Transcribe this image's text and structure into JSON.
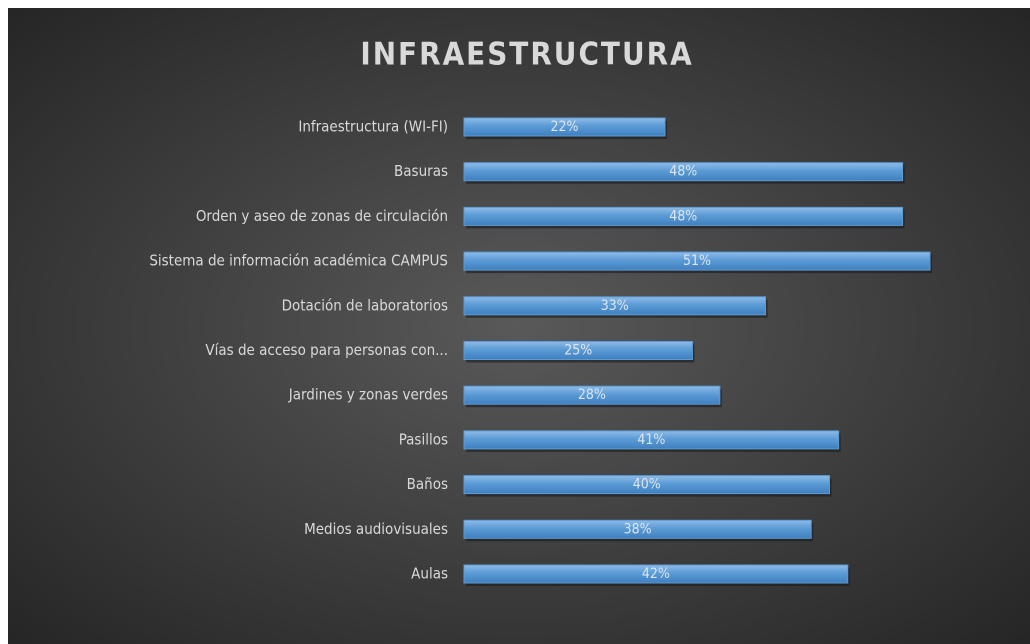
{
  "chart_data": {
    "type": "bar",
    "orientation": "horizontal",
    "title": "INFRAESTRUCTURA",
    "categories": [
      "Infraestructura (WI-FI)",
      "Basuras",
      "Orden y aseo de zonas de circulación",
      "Sistema de información académica CAMPUS",
      "Dotación de laboratorios",
      "Vías de acceso para personas con...",
      "Jardines y zonas verdes",
      "Pasillos",
      "Baños",
      "Medios audiovisuales",
      "Aulas"
    ],
    "values": [
      22,
      48,
      48,
      51,
      33,
      25,
      28,
      41,
      40,
      38,
      42
    ],
    "value_labels": [
      "22%",
      "48%",
      "48%",
      "51%",
      "33%",
      "25%",
      "28%",
      "41%",
      "40%",
      "38%",
      "42%"
    ],
    "color": "#5b9bd5"
  }
}
